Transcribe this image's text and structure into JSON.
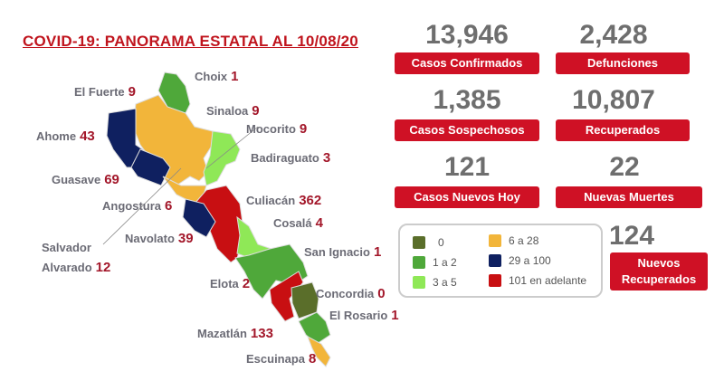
{
  "title": "COVID-19: PANORAMA ESTATAL AL 10/08/20",
  "municipalities": [
    {
      "name": "Choix",
      "value": "1",
      "color": "#4fa83a"
    },
    {
      "name": "El Fuerte",
      "value": "9",
      "color": "#f2b53a"
    },
    {
      "name": "Sinaloa",
      "value": "9",
      "color": "#f2b53a"
    },
    {
      "name": "Mocorito",
      "value": "9",
      "color": "#f2b53a"
    },
    {
      "name": "Ahome",
      "value": "43",
      "color": "#0f2060"
    },
    {
      "name": "Badiraguato",
      "value": "3",
      "color": "#8fe857"
    },
    {
      "name": "Guasave",
      "value": "69",
      "color": "#0f2060"
    },
    {
      "name": "Culiacán",
      "value": "362",
      "color": "#c80f12"
    },
    {
      "name": "Angostura",
      "value": "6",
      "color": "#f2b53a"
    },
    {
      "name": "Cosalá",
      "value": "4",
      "color": "#8fe857"
    },
    {
      "name": "Navolato",
      "value": "39",
      "color": "#0f2060"
    },
    {
      "name": "Salvador Alvarado",
      "value": "12",
      "color": "#f2b53a"
    },
    {
      "name": "San Ignacio",
      "value": "1",
      "color": "#4fa83a"
    },
    {
      "name": "Elota",
      "value": "2",
      "color": "#4fa83a"
    },
    {
      "name": "Concordia",
      "value": "0",
      "color": "#5a6e2a"
    },
    {
      "name": "El Rosario",
      "value": "1",
      "color": "#4fa83a"
    },
    {
      "name": "Mazatlán",
      "value": "133",
      "color": "#c80f12"
    },
    {
      "name": "Escuinapa",
      "value": "8",
      "color": "#f2b53a"
    }
  ],
  "salvador_line1": "Salvador",
  "salvador_line2": "Alvarado",
  "stats": [
    {
      "value": "13,946",
      "label": "Casos Confirmados"
    },
    {
      "value": "2,428",
      "label": "Defunciones"
    },
    {
      "value": "1,385",
      "label": "Casos Sospechosos"
    },
    {
      "value": "10,807",
      "label": "Recuperados"
    },
    {
      "value": "121",
      "label": "Casos Nuevos Hoy"
    },
    {
      "value": "22",
      "label": "Nuevas Muertes"
    }
  ],
  "new_recovered": {
    "value": "124",
    "label_line1": "Nuevos",
    "label_line2": "Recuperados"
  },
  "legend": [
    {
      "label": "0",
      "color": "#5a6e2a"
    },
    {
      "label": "1 a 2",
      "color": "#4fa83a"
    },
    {
      "label": "3 a 5",
      "color": "#8fe857"
    },
    {
      "label": "6 a 28",
      "color": "#f2b53a"
    },
    {
      "label": "29 a 100",
      "color": "#0f2060"
    },
    {
      "label": "101 en adelante",
      "color": "#c80f12"
    }
  ]
}
